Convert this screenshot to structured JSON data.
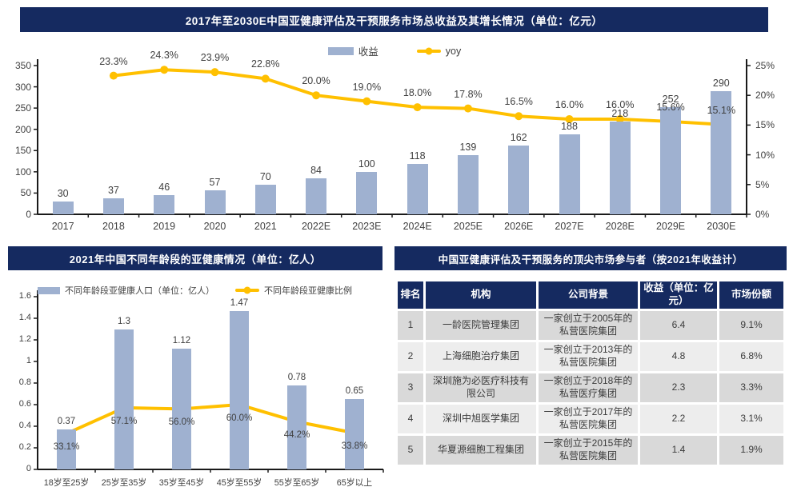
{
  "colors": {
    "navy": "#152A60",
    "bar": "#9FB1D0",
    "line": "#FFC000",
    "row_dark": "#D9D9D9",
    "row_light": "#EDEDED",
    "axis": "#1A1A1A",
    "label_text": "#404040",
    "header_text": "#FFFFFF"
  },
  "chart_data": [
    {
      "type": "bar+line",
      "title": "2017年至2030E中国亚健康评估及干预服务市场总收益及其增长情况（单位：亿元）",
      "categories": [
        "2017",
        "2018",
        "2019",
        "2020",
        "2021",
        "2022E",
        "2023E",
        "2024E",
        "2025E",
        "2026E",
        "2027E",
        "2028E",
        "2029E",
        "2030E"
      ],
      "series": [
        {
          "name": "收益",
          "kind": "bar",
          "axis": "left",
          "values": [
            30,
            37,
            46,
            57,
            70,
            84,
            100,
            118,
            139,
            162,
            188,
            218,
            252,
            290
          ],
          "labels": [
            "30",
            "37",
            "46",
            "57",
            "70",
            "84",
            "100",
            "118",
            "139",
            "162",
            "188",
            "218",
            "252",
            "290"
          ]
        },
        {
          "name": "yoy",
          "kind": "line",
          "axis": "right",
          "values": [
            null,
            23.3,
            24.3,
            23.9,
            22.8,
            20.0,
            19.0,
            18.0,
            17.8,
            16.5,
            16.0,
            16.0,
            15.6,
            15.1
          ],
          "labels": [
            "",
            "23.3%",
            "24.3%",
            "23.9%",
            "22.8%",
            "20.0%",
            "19.0%",
            "18.0%",
            "17.8%",
            "16.5%",
            "16.0%",
            "16.0%",
            "15.6%",
            "15.1%"
          ]
        }
      ],
      "left_axis": {
        "min": 0,
        "max": 350,
        "ticks": [
          "0",
          "50",
          "100",
          "150",
          "200",
          "250",
          "300",
          "350"
        ]
      },
      "right_axis": {
        "min": 0,
        "max": 25,
        "ticks": [
          "0%",
          "5%",
          "10%",
          "15%",
          "20%",
          "25%"
        ]
      },
      "line_max": 25,
      "legend_position": "top",
      "grid": false
    },
    {
      "type": "bar+line",
      "title": "2021年中国不同年龄段的亚健康情况（单位：亿人）",
      "categories": [
        "18岁至25岁",
        "25岁至35岁",
        "35岁至45岁",
        "45岁至55岁",
        "55岁至65岁",
        "65岁以上"
      ],
      "series": [
        {
          "name": "不同年龄段亚健康人口（单位：亿人）",
          "kind": "bar",
          "axis": "left",
          "values": [
            0.37,
            1.3,
            1.12,
            1.47,
            0.78,
            0.65
          ],
          "labels": [
            "0.37",
            "1.3",
            "1.12",
            "1.47",
            "0.78",
            "0.65"
          ]
        },
        {
          "name": "不同年龄段亚健康比例",
          "kind": "line",
          "axis": "left",
          "values": [
            0.331,
            0.571,
            0.56,
            0.6,
            0.442,
            0.338
          ],
          "labels": [
            "33.1%",
            "57.1%",
            "56.0%",
            "60.0%",
            "44.2%",
            "33.8%"
          ]
        }
      ],
      "left_axis": {
        "min": 0,
        "max": 1.6,
        "ticks": [
          "0",
          "0.2",
          "0.4",
          "0.6",
          "0.8",
          "1",
          "1.2",
          "1.4",
          "1.6"
        ]
      },
      "right_axis": null,
      "line_max": 1.6,
      "legend_position": "top",
      "grid": false
    }
  ],
  "table": {
    "type": "table",
    "title": "中国亚健康评估及干预服务的顶尖市场参与者（按2021年收益计）",
    "headers": [
      "排名",
      "机构",
      "公司背景",
      "收益（单位：亿元）",
      "市场份额"
    ],
    "rows": [
      [
        "1",
        "一龄医院管理集团",
        "一家创立于2005年的私营医院集团",
        "6.4",
        "9.1%"
      ],
      [
        "2",
        "上海细胞治疗集团",
        "一家创立于2013年的私营医院集团",
        "4.8",
        "6.8%"
      ],
      [
        "3",
        "深圳施为必医疗科技有限公司",
        "一家创立于2018年的私营医疗集团",
        "2.3",
        "3.3%"
      ],
      [
        "4",
        "深圳中旭医学集团",
        "一家创立于2017年的私营医院集团",
        "2.2",
        "3.1%"
      ],
      [
        "5",
        "华夏源细胞工程集团",
        "一家创立于2015年的私营医院集团",
        "1.4",
        "1.9%"
      ]
    ]
  }
}
